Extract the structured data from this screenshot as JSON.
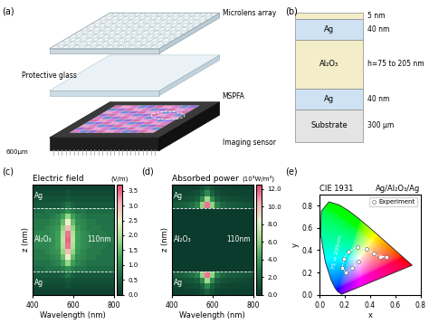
{
  "panel_a": {
    "label": "(a)",
    "texts": {
      "microlens": "Microlens array",
      "glass": "Protective glass",
      "mspfa": "MSPFA",
      "sensor": "Imaging sensor",
      "scale": "600μm"
    }
  },
  "panel_b": {
    "label": "(b)",
    "layers": [
      {
        "thickness": "5 nm"
      },
      {
        "name": "Ag",
        "thickness": "40 nm"
      },
      {
        "name": "Al₂O₃",
        "thickness": "h=75 to 205 nm"
      },
      {
        "name": "Ag",
        "thickness": "40 nm"
      },
      {
        "name": "Substrate",
        "thickness": "300 μm"
      }
    ]
  },
  "chart_data": [
    {
      "type": "heatmap",
      "label": "(c)",
      "title": "Electric field",
      "xlabel": "Wavelength (nm)",
      "ylabel": "z (nm)",
      "annotation": "110nm",
      "tick_labels": "x",
      "xlim": [
        400,
        800
      ],
      "ylim": [
        0,
        190
      ],
      "xticks": [
        400,
        600,
        800
      ],
      "layers": [
        {
          "name": "Ag",
          "from": 0,
          "to": 40
        },
        {
          "name": "Al₂O₃",
          "from": 40,
          "to": 150
        },
        {
          "name": "Ag",
          "from": 150,
          "to": 190
        }
      ],
      "x": [
        400,
        425,
        450,
        475,
        500,
        525,
        550,
        575,
        600,
        625,
        650,
        675,
        700,
        725,
        750,
        775,
        800
      ],
      "y": [
        5,
        15,
        25,
        35,
        45,
        55,
        65,
        75,
        85,
        95,
        105,
        115,
        125,
        135,
        145,
        155,
        165,
        175,
        185
      ],
      "cells": [
        [
          0.1,
          0.1,
          0.1,
          0.1,
          0.1,
          0.1,
          0.1,
          0.1,
          0.1,
          0.1,
          0.1,
          0.1,
          0.1,
          0.1,
          0.1,
          0.1,
          0.1
        ],
        [
          0.2,
          0.2,
          0.2,
          0.2,
          0.2,
          0.2,
          0.2,
          0.3,
          0.2,
          0.2,
          0.2,
          0.2,
          0.2,
          0.2,
          0.2,
          0.2,
          0.2
        ],
        [
          0.3,
          0.3,
          0.3,
          0.3,
          0.3,
          0.3,
          0.3,
          0.4,
          0.3,
          0.3,
          0.3,
          0.3,
          0.3,
          0.3,
          0.3,
          0.3,
          0.3
        ],
        [
          0.4,
          0.4,
          0.4,
          0.4,
          0.4,
          0.4,
          0.5,
          0.7,
          0.5,
          0.4,
          0.4,
          0.4,
          0.4,
          0.4,
          0.4,
          0.4,
          0.4
        ],
        [
          0.6,
          0.6,
          0.6,
          0.7,
          0.7,
          0.7,
          0.8,
          1.0,
          0.8,
          0.7,
          0.7,
          0.6,
          0.6,
          0.6,
          0.6,
          0.6,
          0.6
        ],
        [
          0.7,
          0.7,
          0.7,
          0.7,
          0.8,
          0.9,
          1.2,
          1.8,
          1.2,
          0.9,
          0.8,
          0.7,
          0.7,
          0.7,
          0.7,
          0.7,
          0.7
        ],
        [
          0.8,
          0.8,
          0.8,
          0.8,
          0.9,
          1.0,
          1.5,
          2.5,
          1.5,
          1.0,
          0.9,
          0.8,
          0.8,
          0.7,
          0.7,
          0.7,
          0.7
        ],
        [
          0.8,
          0.8,
          0.8,
          0.9,
          1.0,
          1.1,
          1.8,
          3.0,
          1.8,
          1.1,
          0.9,
          0.8,
          0.8,
          0.8,
          0.7,
          0.7,
          0.7
        ],
        [
          0.8,
          0.9,
          0.9,
          0.9,
          1.0,
          1.2,
          2.0,
          3.4,
          2.0,
          1.2,
          1.0,
          0.9,
          0.8,
          0.8,
          0.8,
          0.7,
          0.7
        ],
        [
          0.8,
          0.9,
          0.9,
          1.0,
          1.0,
          1.2,
          2.1,
          3.5,
          2.1,
          1.2,
          1.0,
          0.9,
          0.8,
          0.8,
          0.8,
          0.8,
          0.8
        ],
        [
          0.8,
          0.9,
          0.9,
          0.9,
          1.0,
          1.2,
          2.0,
          3.4,
          2.0,
          1.2,
          1.0,
          0.9,
          0.8,
          0.8,
          0.8,
          0.7,
          0.7
        ],
        [
          0.8,
          0.8,
          0.8,
          0.9,
          1.0,
          1.1,
          1.8,
          3.0,
          1.8,
          1.1,
          0.9,
          0.8,
          0.8,
          0.8,
          0.7,
          0.7,
          0.7
        ],
        [
          0.8,
          0.8,
          0.8,
          0.8,
          0.9,
          1.0,
          1.5,
          2.5,
          1.5,
          1.0,
          0.9,
          0.8,
          0.8,
          0.7,
          0.7,
          0.7,
          0.7
        ],
        [
          0.7,
          0.7,
          0.7,
          0.7,
          0.8,
          0.9,
          1.2,
          1.8,
          1.2,
          0.9,
          0.8,
          0.7,
          0.7,
          0.7,
          0.7,
          0.7,
          0.7
        ],
        [
          0.6,
          0.6,
          0.6,
          0.7,
          0.7,
          0.7,
          0.8,
          1.0,
          0.8,
          0.7,
          0.7,
          0.6,
          0.6,
          0.6,
          0.6,
          0.6,
          0.6
        ],
        [
          0.4,
          0.4,
          0.4,
          0.4,
          0.4,
          0.4,
          0.5,
          0.7,
          0.5,
          0.4,
          0.4,
          0.4,
          0.4,
          0.4,
          0.4,
          0.4,
          0.4
        ],
        [
          0.3,
          0.3,
          0.3,
          0.3,
          0.3,
          0.3,
          0.3,
          0.4,
          0.3,
          0.3,
          0.3,
          0.3,
          0.3,
          0.3,
          0.3,
          0.3,
          0.3
        ],
        [
          0.2,
          0.2,
          0.2,
          0.2,
          0.2,
          0.2,
          0.2,
          0.3,
          0.2,
          0.2,
          0.2,
          0.2,
          0.2,
          0.2,
          0.2,
          0.2,
          0.2
        ],
        [
          0.1,
          0.1,
          0.1,
          0.1,
          0.1,
          0.1,
          0.1,
          0.1,
          0.1,
          0.1,
          0.1,
          0.1,
          0.1,
          0.1,
          0.1,
          0.1,
          0.1
        ]
      ],
      "colorbar": {
        "label": "(V/m)",
        "range": [
          0,
          3.7
        ],
        "ticks": [
          {
            "value": 0,
            "label": "0.0"
          },
          0.5,
          {
            "value": 1,
            "label": "1.0"
          },
          1.5,
          {
            "value": 2,
            "label": "2.0"
          },
          2.5,
          {
            "value": 3,
            "label": "3.0"
          },
          3.5
        ]
      }
    },
    {
      "type": "heatmap",
      "label": "(d)",
      "title": "Absorbed power",
      "xlabel": "Wavelength (nm)",
      "ylabel": "z (nm)",
      "annotation": "110nm",
      "tick_labels": "x",
      "xlim": [
        400,
        800
      ],
      "ylim": [
        0,
        190
      ],
      "xticks": [
        400,
        600,
        800
      ],
      "layers": [
        {
          "name": "Ag",
          "from": 0,
          "to": 40
        },
        {
          "name": "Al₂O₃",
          "from": 40,
          "to": 150
        },
        {
          "name": "Ag",
          "from": 150,
          "to": 190
        }
      ],
      "x": [
        400,
        425,
        450,
        475,
        500,
        525,
        550,
        575,
        600,
        625,
        650,
        675,
        700,
        725,
        750,
        775,
        800
      ],
      "y": [
        5,
        15,
        25,
        35,
        45,
        55,
        65,
        75,
        85,
        95,
        105,
        115,
        125,
        135,
        145,
        155,
        165,
        175,
        185
      ],
      "cells": [
        [
          0.2,
          0.2,
          0.3,
          0.3,
          0.3,
          0.4,
          0.9,
          1.6,
          0.9,
          0.4,
          0.3,
          0.3,
          0.2,
          0.2,
          0.2,
          0.2,
          0.2
        ],
        [
          0.4,
          0.5,
          0.5,
          0.6,
          0.7,
          0.9,
          1.7,
          3.2,
          1.7,
          0.9,
          0.6,
          0.5,
          0.4,
          0.4,
          0.4,
          0.4,
          0.4
        ],
        [
          0.8,
          0.8,
          0.9,
          1.0,
          1.2,
          1.6,
          3.3,
          6.3,
          3.3,
          1.6,
          1.1,
          0.9,
          0.8,
          0.7,
          0.7,
          0.6,
          0.6
        ],
        [
          1.4,
          1.5,
          1.6,
          1.8,
          2.2,
          2.9,
          6.0,
          11.5,
          6.0,
          2.9,
          2.0,
          1.6,
          1.4,
          1.3,
          1.2,
          1.1,
          1.1
        ],
        [
          0,
          0,
          0,
          0,
          0,
          0,
          0,
          0,
          0,
          0,
          0,
          0,
          0,
          0,
          0,
          0,
          0
        ],
        [
          0,
          0,
          0,
          0,
          0,
          0,
          0,
          0,
          0,
          0,
          0,
          0,
          0,
          0,
          0,
          0,
          0
        ],
        [
          0,
          0,
          0,
          0,
          0,
          0,
          0,
          0,
          0,
          0,
          0,
          0,
          0,
          0,
          0,
          0,
          0
        ],
        [
          0,
          0,
          0,
          0,
          0,
          0,
          0,
          0,
          0,
          0,
          0,
          0,
          0,
          0,
          0,
          0,
          0
        ],
        [
          0,
          0,
          0,
          0,
          0,
          0,
          0,
          0,
          0,
          0,
          0,
          0,
          0,
          0,
          0,
          0,
          0
        ],
        [
          0,
          0,
          0,
          0,
          0,
          0,
          0,
          0,
          0,
          0,
          0,
          0,
          0,
          0,
          0,
          0,
          0
        ],
        [
          0,
          0,
          0,
          0,
          0,
          0,
          0,
          0,
          0,
          0,
          0,
          0,
          0,
          0,
          0,
          0,
          0
        ],
        [
          0,
          0,
          0,
          0,
          0,
          0,
          0,
          0,
          0,
          0,
          0,
          0,
          0,
          0,
          0,
          0,
          0
        ],
        [
          0,
          0,
          0,
          0,
          0,
          0,
          0,
          0,
          0,
          0,
          0,
          0,
          0,
          0,
          0,
          0,
          0
        ],
        [
          0,
          0,
          0,
          0,
          0,
          0,
          0,
          0,
          0,
          0,
          0,
          0,
          0,
          0,
          0,
          0,
          0
        ],
        [
          0,
          0,
          0,
          0,
          0,
          0,
          0,
          0,
          0,
          0,
          0,
          0,
          0,
          0,
          0,
          0,
          0
        ],
        [
          1.4,
          1.5,
          1.6,
          1.8,
          2.2,
          2.9,
          6.0,
          11.5,
          6.0,
          2.9,
          2.0,
          1.6,
          1.4,
          1.3,
          1.2,
          1.1,
          1.1
        ],
        [
          0.8,
          0.8,
          0.9,
          1.0,
          1.2,
          1.6,
          3.3,
          6.3,
          3.3,
          1.6,
          1.1,
          0.9,
          0.8,
          0.7,
          0.7,
          0.6,
          0.6
        ],
        [
          0.4,
          0.5,
          0.5,
          0.6,
          0.7,
          0.9,
          1.7,
          3.2,
          1.7,
          0.9,
          0.6,
          0.5,
          0.4,
          0.4,
          0.4,
          0.4,
          0.4
        ],
        [
          0.2,
          0.2,
          0.3,
          0.3,
          0.3,
          0.4,
          0.9,
          1.6,
          0.9,
          0.4,
          0.3,
          0.3,
          0.2,
          0.2,
          0.2,
          0.2,
          0.2
        ]
      ],
      "colorbar": {
        "label": "(10³W/m³)",
        "range": [
          0,
          12.5
        ],
        "ticks": [
          {
            "value": 0,
            "label": "0.0"
          },
          {
            "value": 2,
            "label": "2.0"
          },
          {
            "value": 4,
            "label": "4.0"
          },
          {
            "value": 6,
            "label": "6.0"
          },
          {
            "value": 8,
            "label": "8.0"
          },
          {
            "value": 10,
            "label": "10.0"
          },
          {
            "value": 12,
            "label": "12.0"
          }
        ]
      }
    },
    {
      "type": "scatter",
      "label": "(e)",
      "title": "CIE 1931",
      "subtitle": "Ag/Al₂O₃/Ag",
      "xlabel": "x",
      "ylabel": "y",
      "annotation": "75 → 205nm",
      "legend": "upper right",
      "xlim": [
        0,
        0.8
      ],
      "ylim": [
        0,
        0.9
      ],
      "xticks": [
        0.0,
        0.2,
        0.4,
        0.6,
        0.8
      ],
      "yticks": [
        0.0,
        0.2,
        0.4,
        0.6,
        0.8
      ],
      "locus": {
        "x": [
          0.1741,
          0.144,
          0.1241,
          0.0913,
          0.0454,
          0.0082,
          0.0139,
          0.0743,
          0.1547,
          0.2296,
          0.3016,
          0.3731,
          0.4441,
          0.5125,
          0.5752,
          0.627,
          0.6915,
          0.7347
        ],
        "y": [
          0.005,
          0.0297,
          0.0578,
          0.1327,
          0.295,
          0.5384,
          0.7502,
          0.8338,
          0.8059,
          0.7543,
          0.6923,
          0.6245,
          0.5547,
          0.4866,
          0.4242,
          0.3725,
          0.3083,
          0.2653
        ]
      },
      "series": [
        {
          "name": "Experiment",
          "color": "#ffffff",
          "marker": "o",
          "line_style": "dashed",
          "x": [
            0.31,
            0.26,
            0.21,
            0.18,
            0.19,
            0.23,
            0.3,
            0.37,
            0.43,
            0.48,
            0.53
          ],
          "y": [
            0.3,
            0.24,
            0.2,
            0.24,
            0.32,
            0.39,
            0.43,
            0.41,
            0.37,
            0.34,
            0.34
          ]
        }
      ]
    }
  ]
}
